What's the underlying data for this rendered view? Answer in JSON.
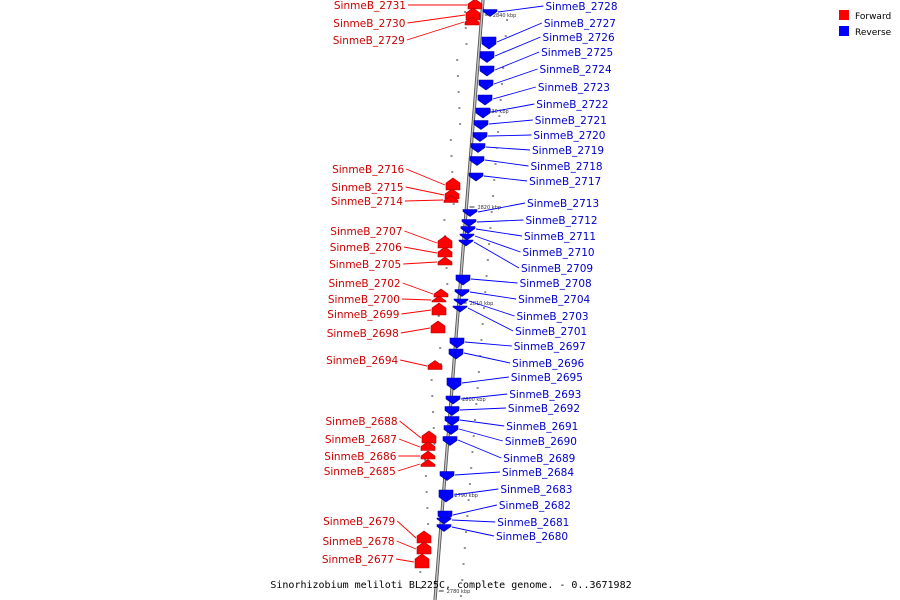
{
  "colors": {
    "forward": "#ff0000",
    "reverse": "#0000ff",
    "forward_text": "#cc0000",
    "reverse_text": "#0000cc",
    "backbone": "#999999"
  },
  "legend": [
    {
      "label": "Forward",
      "strand": "forward"
    },
    {
      "label": "Reverse",
      "strand": "reverse"
    }
  ],
  "caption": "Sinorhizobium meliloti BL225C, complete genome. - 0..3671982",
  "ticks": [
    "2840 kbp",
    "2830 kbp",
    "2820 kbp",
    "2810 kbp",
    "2800 kbp",
    "2790 kbp",
    "2780 kbp"
  ],
  "forward_genes": [
    "SinmeB_2731",
    "SinmeB_2730",
    "SinmeB_2729",
    "SinmeB_2716",
    "SinmeB_2715",
    "SinmeB_2714",
    "SinmeB_2707",
    "SinmeB_2706",
    "SinmeB_2705",
    "SinmeB_2702",
    "SinmeB_2700",
    "SinmeB_2699",
    "SinmeB_2698",
    "SinmeB_2694",
    "SinmeB_2688",
    "SinmeB_2687",
    "SinmeB_2686",
    "SinmeB_2685",
    "SinmeB_2679",
    "SinmeB_2678",
    "SinmeB_2677"
  ],
  "reverse_genes": [
    "SinmeB_2728",
    "SinmeB_2727",
    "SinmeB_2726",
    "SinmeB_2725",
    "SinmeB_2724",
    "SinmeB_2723",
    "SinmeB_2722",
    "SinmeB_2721",
    "SinmeB_2720",
    "SinmeB_2719",
    "SinmeB_2718",
    "SinmeB_2717",
    "SinmeB_2713",
    "SinmeB_2712",
    "SinmeB_2711",
    "SinmeB_2710",
    "SinmeB_2709",
    "SinmeB_2708",
    "SinmeB_2704",
    "SinmeB_2703",
    "SinmeB_2701",
    "SinmeB_2697",
    "SinmeB_2696",
    "SinmeB_2695",
    "SinmeB_2693",
    "SinmeB_2692",
    "SinmeB_2691",
    "SinmeB_2690",
    "SinmeB_2689",
    "SinmeB_2684",
    "SinmeB_2683",
    "SinmeB_2682",
    "SinmeB_2681",
    "SinmeB_2680"
  ]
}
